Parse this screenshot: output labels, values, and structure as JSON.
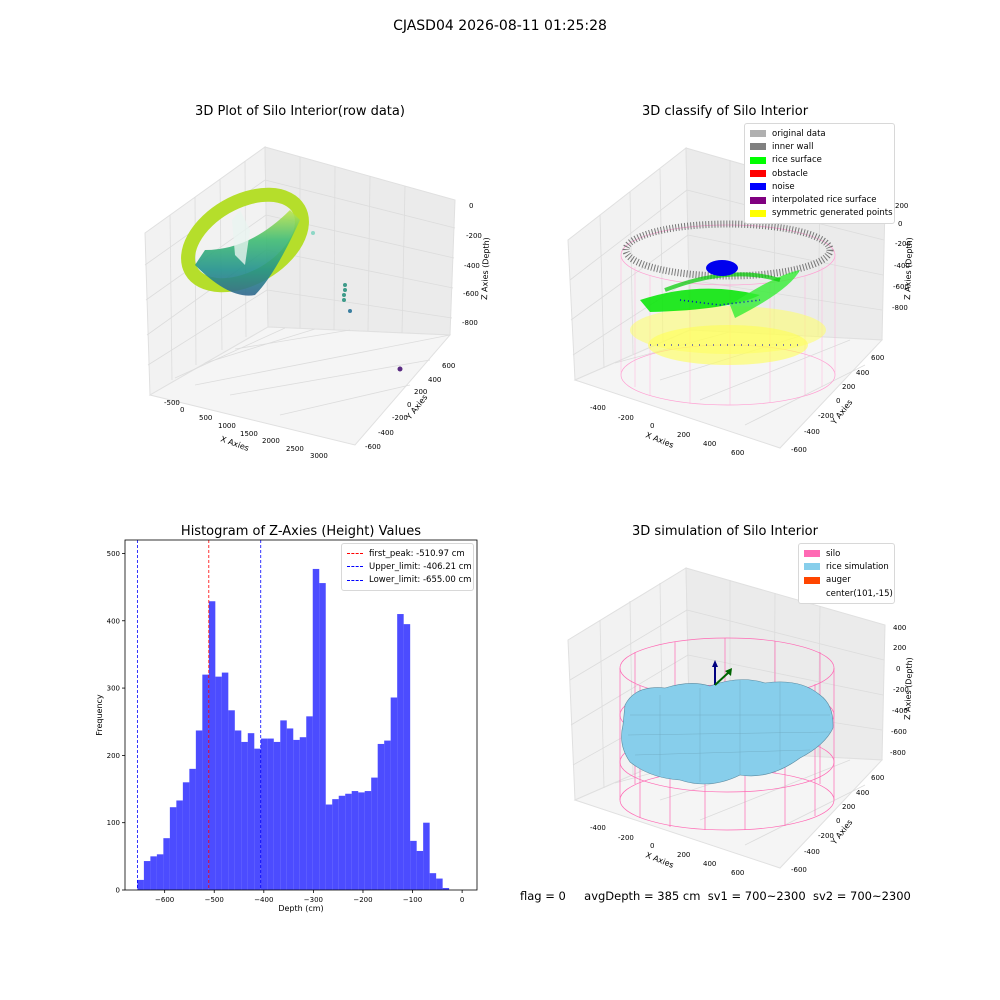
{
  "suptitle": "CJASD04 2026-08-11 01:25:28",
  "footer": {
    "flag": "flag = 0",
    "avg_depth": "avgDepth = 385 cm",
    "sv1": "sv1 = 700~2300",
    "sv2": "sv2 = 700~2300"
  },
  "panels": {
    "raw": {
      "title": "3D Plot of Silo Interior(row data)",
      "xlabel": "X Axies",
      "ylabel": "Y Axies",
      "zlabel": "Z Axies (Depth)",
      "xticks": [
        "-500",
        "0",
        "500",
        "1000",
        "1500",
        "2000",
        "2500",
        "3000"
      ],
      "yticks": [
        "600",
        "400",
        "200",
        "0",
        "-200",
        "-400",
        "-600"
      ],
      "zticks": [
        "0",
        "-200",
        "-400",
        "-600",
        "-800"
      ]
    },
    "classify": {
      "title": "3D classify of Silo Interior",
      "xlabel": "X Axies",
      "ylabel": "Y Axies",
      "zlabel": "Z Axies (Depth)",
      "xticks": [
        "-400",
        "-200",
        "0",
        "200",
        "400",
        "600"
      ],
      "yticks": [
        "600",
        "400",
        "200",
        "0",
        "-200",
        "-400",
        "-600"
      ],
      "zticks": [
        "200",
        "0",
        "-200",
        "-400",
        "-600",
        "-800"
      ],
      "legend": [
        {
          "label": "original data",
          "color": "#b0b0b0"
        },
        {
          "label": "inner wall",
          "color": "#808080"
        },
        {
          "label": "rice surface",
          "color": "#00ff00"
        },
        {
          "label": "obstacle",
          "color": "#ff0000"
        },
        {
          "label": "noise",
          "color": "#0000ff"
        },
        {
          "label": "interpolated rice surface",
          "color": "#800080"
        },
        {
          "label": "symmetric generated points",
          "color": "#ffff00"
        }
      ]
    },
    "simulation": {
      "title": "3D simulation of Silo Interior",
      "xlabel": "X Axies",
      "ylabel": "Y Axies",
      "zlabel": "Z Axies (Depth)",
      "xticks": [
        "-400",
        "-200",
        "0",
        "200",
        "400",
        "600"
      ],
      "yticks": [
        "600",
        "400",
        "200",
        "0",
        "-200",
        "-400",
        "-600"
      ],
      "zticks": [
        "400",
        "200",
        "0",
        "-200",
        "-400",
        "-600",
        "-800"
      ],
      "legend": [
        {
          "label": "silo",
          "color": "#ff69b4"
        },
        {
          "label": "rice simulation",
          "color": "#87ceeb"
        },
        {
          "label": "auger",
          "color": "#ff4500"
        },
        {
          "label": "center(101,-15)",
          "color": ""
        }
      ]
    }
  },
  "chart_data": {
    "type": "bar",
    "title": "Histogram of Z-Axies (Height) Values",
    "xlabel": "Depth (cm)",
    "ylabel": "Frequency",
    "xlim": [
      -680,
      30
    ],
    "ylim": [
      0,
      520
    ],
    "xticks": [
      -600,
      -500,
      -400,
      -300,
      -200,
      -100,
      0
    ],
    "yticks": [
      0,
      100,
      200,
      300,
      400,
      500
    ],
    "bar_color": "#0000ff",
    "bin_width": 13.1,
    "bin_start": -655,
    "values": [
      15,
      43,
      50,
      53,
      77,
      123,
      133,
      160,
      180,
      237,
      320,
      429,
      317,
      323,
      267,
      237,
      220,
      233,
      210,
      225,
      225,
      220,
      252,
      240,
      223,
      227,
      258,
      477,
      456,
      127,
      135,
      140,
      143,
      147,
      145,
      147,
      167,
      217,
      222,
      286,
      410,
      395,
      73,
      58,
      100,
      25,
      17,
      3
    ],
    "vlines": [
      {
        "label": "first_peak: -510.97 cm",
        "x": -510.97,
        "color": "#ff0000"
      },
      {
        "label": "Upper_limit: -406.21 cm",
        "x": -406.21,
        "color": "#0000ff"
      },
      {
        "label": "Lower_limit: -655.00 cm",
        "x": -655.0,
        "color": "#0000ff"
      }
    ],
    "legend_position": "top-right"
  }
}
